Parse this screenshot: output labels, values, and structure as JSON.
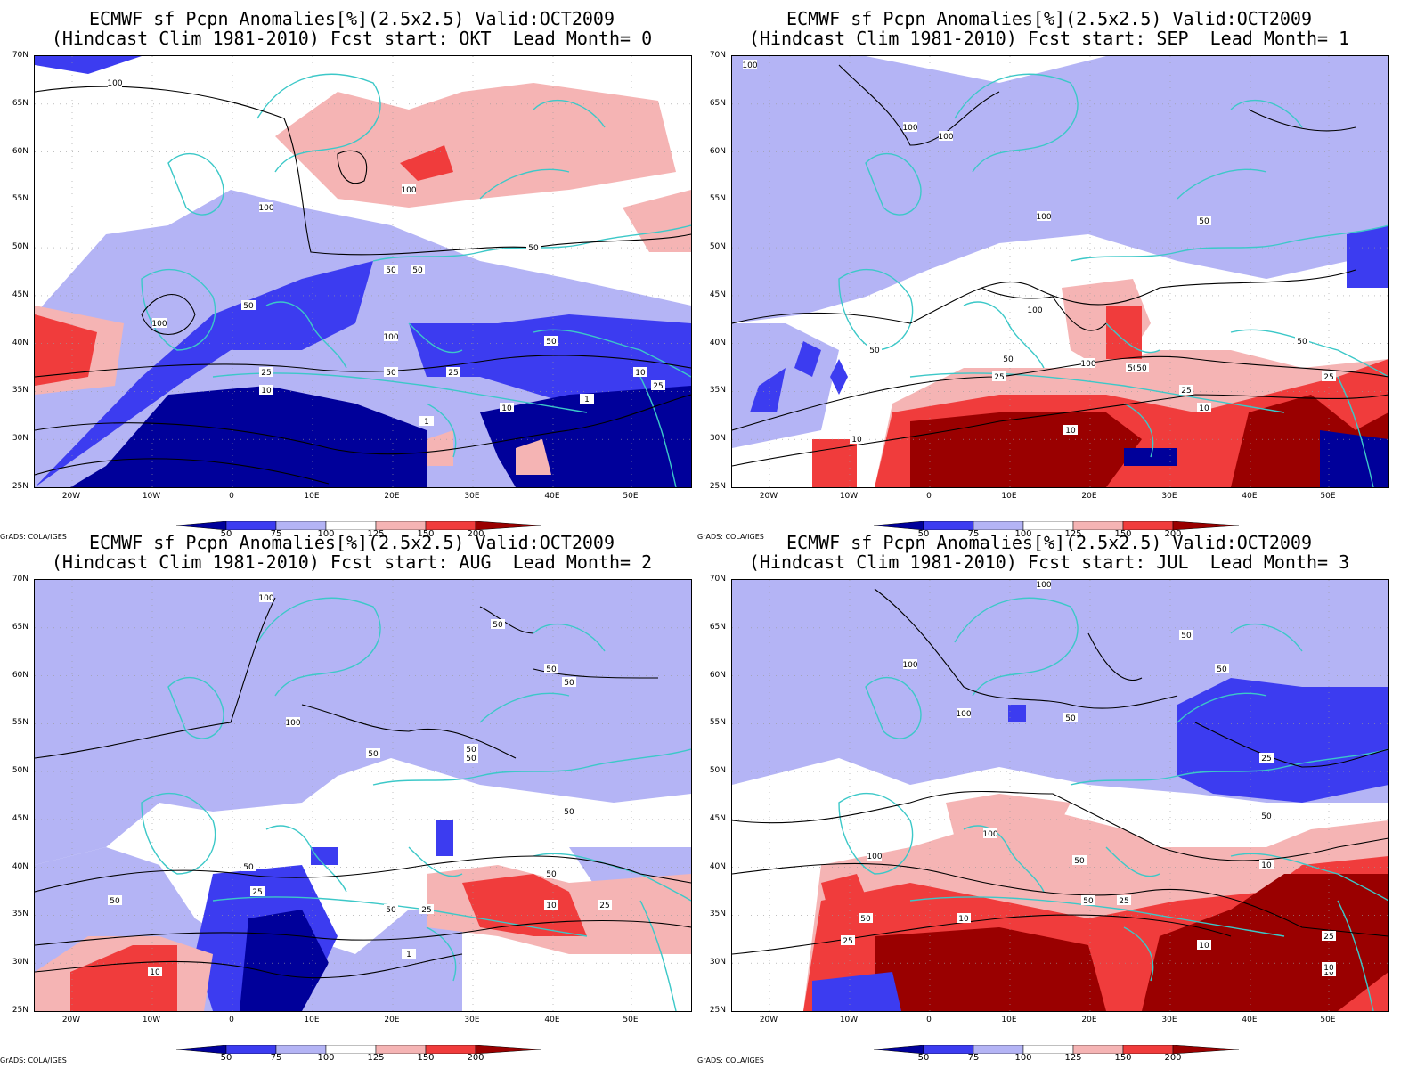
{
  "panels": [
    {
      "title1": "ECMWF sf Pcpn Anomalies[%](2.5x2.5) Valid:OCT2009",
      "title2": "(Hindcast Clim 1981-2010) Fcst start: OKT  Lead Month= 0",
      "contour_labels": [
        "100",
        "100",
        "100",
        "100",
        "50",
        "50",
        "50",
        "50",
        "50",
        "25",
        "10",
        "25",
        "10",
        "1",
        "1",
        "10",
        "100",
        "50",
        "25"
      ]
    },
    {
      "title1": "ECMWF sf Pcpn Anomalies[%](2.5x2.5) Valid:OCT2009",
      "title2": "(Hindcast Clim 1981-2010) Fcst start: SEP  Lead Month= 1",
      "contour_labels": [
        "100",
        "100",
        "100",
        "100",
        "50",
        "50",
        "50",
        "50",
        "100",
        "100",
        "50",
        "25",
        "25",
        "10",
        "10",
        "25",
        "10",
        "50"
      ]
    },
    {
      "title1": "ECMWF sf Pcpn Anomalies[%](2.5x2.5) Valid:OCT2009",
      "title2": "(Hindcast Clim 1981-2010) Fcst start: AUG  Lead Month= 2",
      "contour_labels": [
        "100",
        "100",
        "50",
        "50",
        "50",
        "50",
        "50",
        "50",
        "50",
        "50",
        "50",
        "25",
        "50",
        "10",
        "25",
        "10",
        "25",
        "1",
        "50"
      ]
    },
    {
      "title1": "ECMWF sf Pcpn Anomalies[%](2.5x2.5) Valid:OCT2009",
      "title2": "(Hindcast Clim 1981-2010) Fcst start: JUL  Lead Month= 3",
      "contour_labels": [
        "100",
        "100",
        "100",
        "50",
        "50",
        "50",
        "50",
        "25",
        "50",
        "25",
        "100",
        "100",
        "10",
        "50",
        "25",
        "10",
        "10",
        "10",
        "50",
        "25",
        "10"
      ]
    }
  ],
  "lat_labels": [
    "70N",
    "65N",
    "60N",
    "55N",
    "50N",
    "45N",
    "40N",
    "35N",
    "30N",
    "25N"
  ],
  "lon_labels": [
    "20W",
    "10W",
    "0",
    "10E",
    "20E",
    "30E",
    "40E",
    "50E"
  ],
  "colorbar": {
    "labels": [
      "50",
      "75",
      "100",
      "125",
      "150",
      "200"
    ],
    "colors": [
      "#00009a",
      "#3c3cf0",
      "#b4b4f5",
      "#ffffff",
      "#f5b4b4",
      "#f03c3c",
      "#9a0000"
    ]
  },
  "credit": "GrADS: COLA/IGES",
  "colors": {
    "coast": "#3cc8c8",
    "dblue": "#00009a",
    "mblue": "#3c3cf0",
    "lblue": "#b4b4f5",
    "lred": "#f5b4b4",
    "mred": "#f03c3c",
    "dred": "#9a0000"
  }
}
